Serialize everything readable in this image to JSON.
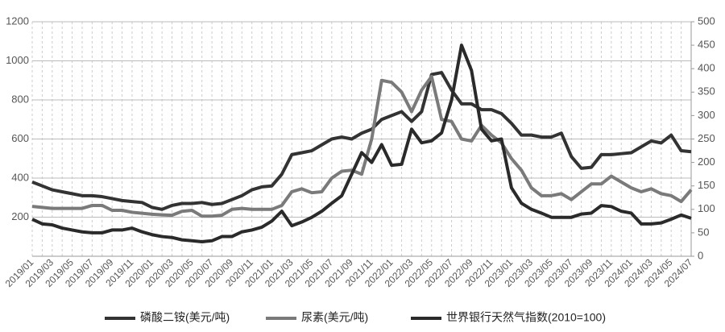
{
  "chart_data": {
    "type": "line",
    "categories": [
      "2019/01",
      null,
      "2019/03",
      null,
      "2019/05",
      null,
      "2019/07",
      null,
      "2019/09",
      null,
      "2019/11",
      null,
      "2020/01",
      null,
      "2020/03",
      null,
      "2020/05",
      null,
      "2020/07",
      null,
      "2020/09",
      null,
      "2020/11",
      null,
      "2021/01",
      null,
      "2021/03",
      null,
      "2021/05",
      null,
      "2021/07",
      null,
      "2021/09",
      null,
      "2021/11",
      null,
      "2022/01",
      null,
      "2022/03",
      null,
      "2022/05",
      null,
      "2022/07",
      null,
      "2022/09",
      null,
      "2022/11",
      null,
      "2023/01",
      null,
      "2023/03",
      null,
      "2023/05",
      null,
      "2023/07",
      null,
      "2023/09",
      null,
      "2023/11",
      null,
      "2024/01",
      null,
      "2024/03",
      null,
      "2024/05",
      null,
      "2024/07"
    ],
    "series": [
      {
        "name": "磷酸二铵(美元/吨)",
        "color": "#333333",
        "values": [
          380,
          360,
          340,
          330,
          320,
          310,
          310,
          305,
          295,
          285,
          280,
          275,
          250,
          240,
          260,
          270,
          270,
          275,
          265,
          270,
          290,
          310,
          340,
          355,
          360,
          420,
          520,
          530,
          540,
          570,
          600,
          610,
          600,
          630,
          650,
          700,
          720,
          740,
          690,
          740,
          930,
          940,
          850,
          780,
          780,
          750,
          750,
          730,
          680,
          620,
          620,
          610,
          610,
          630,
          510,
          450,
          455,
          520,
          520,
          525,
          530,
          560,
          590,
          580,
          620,
          540,
          535
        ]
      },
      {
        "name": "尿素(美元/吨)",
        "color": "#7a7a7a",
        "values": [
          255,
          250,
          245,
          245,
          245,
          245,
          260,
          260,
          235,
          235,
          225,
          220,
          215,
          212,
          210,
          230,
          235,
          205,
          205,
          210,
          240,
          245,
          240,
          240,
          240,
          260,
          330,
          345,
          325,
          330,
          400,
          435,
          440,
          420,
          600,
          900,
          890,
          840,
          740,
          850,
          920,
          700,
          690,
          600,
          590,
          670,
          620,
          580,
          500,
          440,
          350,
          310,
          310,
          320,
          290,
          330,
          370,
          370,
          410,
          380,
          350,
          330,
          345,
          320,
          310,
          280,
          340
        ]
      },
      {
        "name": "世界银行天然气指数(2010=100)",
        "color": "#2a2a2a",
        "axis": "y2",
        "values": [
          79,
          69,
          67,
          60,
          56,
          52,
          50,
          50,
          56,
          56,
          60,
          52,
          46,
          42,
          40,
          35,
          33,
          31,
          33,
          42,
          42,
          52,
          56,
          62,
          75,
          96,
          65,
          73,
          83,
          96,
          113,
          129,
          175,
          221,
          200,
          238,
          194,
          196,
          271,
          242,
          246,
          263,
          333,
          450,
          396,
          271,
          246,
          250,
          146,
          113,
          100,
          92,
          83,
          83,
          83,
          90,
          92,
          108,
          106,
          96,
          92,
          69,
          69,
          71,
          79,
          88,
          81
        ]
      }
    ],
    "ylim": [
      0,
      1200
    ],
    "yticks": [
      200,
      400,
      600,
      800,
      1000,
      1200
    ],
    "y2lim": [
      0,
      500
    ],
    "y2ticks": [
      0,
      50,
      100,
      150,
      200,
      250,
      300,
      350,
      400,
      450,
      500
    ],
    "grid": true,
    "legend": "bottom"
  }
}
